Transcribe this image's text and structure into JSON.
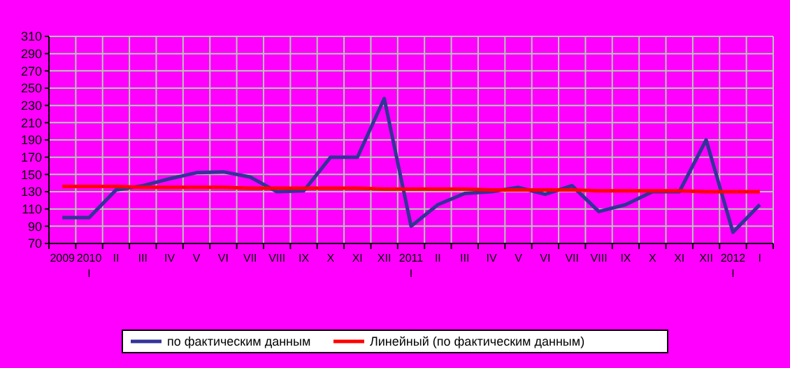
{
  "chart_data": {
    "type": "line",
    "categories": [
      "2009",
      "2010\nI",
      "II",
      "III",
      "IV",
      "V",
      "VI",
      "VII",
      "VIII",
      "IX",
      "X",
      "XI",
      "XII",
      "2011\nI",
      "II",
      "III",
      "IV",
      "V",
      "VI",
      "VII",
      "VIII",
      "IX",
      "X",
      "XI",
      "XII",
      "2012\nI",
      "I"
    ],
    "series": [
      {
        "name": "по фактическим данным",
        "color": "#333399",
        "values": [
          100,
          100,
          132,
          137,
          145,
          152,
          153,
          147,
          130,
          131,
          170,
          170,
          238,
          90,
          115,
          128,
          130,
          135,
          127,
          137,
          107,
          115,
          130,
          130,
          190,
          83,
          115
        ]
      },
      {
        "name": "Линейный (по фактическим данным)",
        "color": "#ff0000",
        "values": [
          136,
          136,
          136,
          135,
          135,
          135,
          135,
          134,
          134,
          134,
          134,
          134,
          133,
          133,
          133,
          133,
          132,
          132,
          132,
          132,
          131,
          131,
          131,
          131,
          130,
          130,
          130
        ]
      }
    ],
    "ylim": [
      70,
      310
    ],
    "yticks": [
      70,
      90,
      110,
      130,
      150,
      170,
      190,
      210,
      230,
      250,
      270,
      290,
      310
    ],
    "grid": true,
    "legend": "bottom"
  }
}
